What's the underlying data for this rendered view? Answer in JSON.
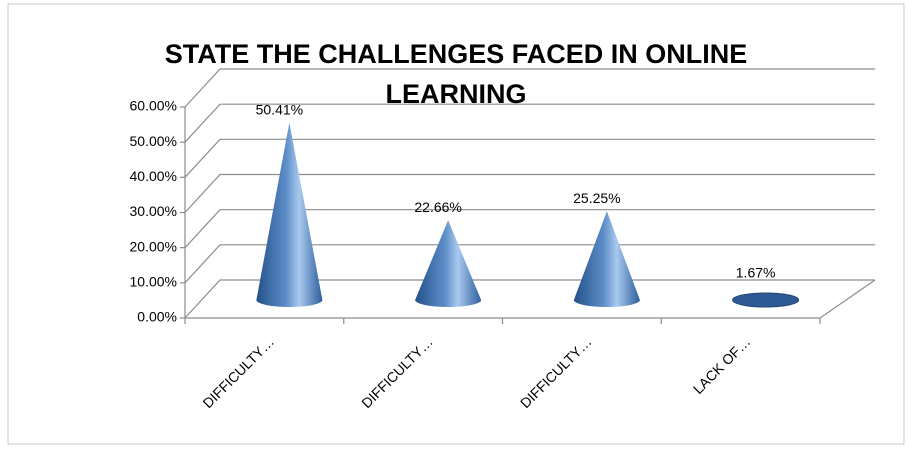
{
  "chart_data": {
    "type": "cone",
    "title": "STATE THE CHALLENGES FACED IN ONLINE LEARNING",
    "categories": [
      "DIFFICULTY…",
      "DIFFICULTY…",
      "DIFFICULTY…",
      "LACK OF…"
    ],
    "values": [
      50.41,
      22.66,
      25.25,
      1.67
    ],
    "value_labels": [
      "50.41%",
      "22.66%",
      "25.25%",
      "1.67%"
    ],
    "color": "#4a7cbf",
    "ylim": [
      0,
      60
    ],
    "yticks": [
      {
        "value": 0,
        "label": "0.00%"
      },
      {
        "value": 10,
        "label": "10.00%"
      },
      {
        "value": 20,
        "label": "20.00%"
      },
      {
        "value": 30,
        "label": "30.00%"
      },
      {
        "value": 40,
        "label": "40.00%"
      },
      {
        "value": 50,
        "label": "50.00%"
      },
      {
        "value": 60,
        "label": "60.00%"
      }
    ],
    "grid": true
  }
}
